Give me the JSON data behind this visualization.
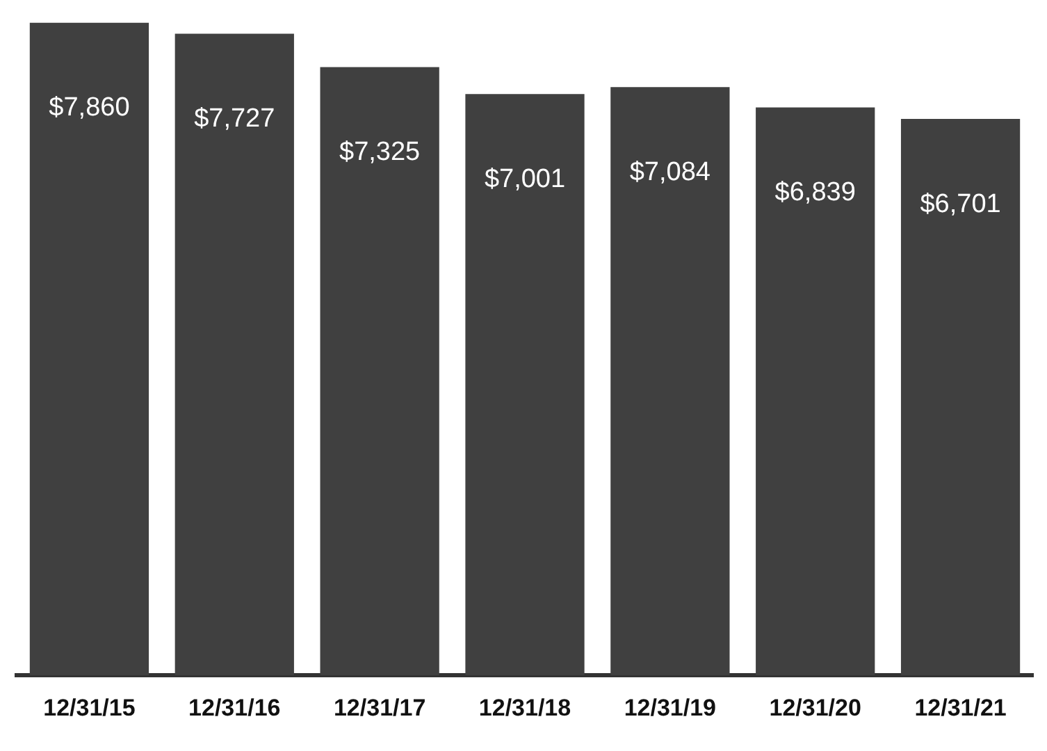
{
  "chart_data": {
    "type": "bar",
    "categories": [
      "12/31/15",
      "12/31/16",
      "12/31/17",
      "12/31/18",
      "12/31/19",
      "12/31/20",
      "12/31/21"
    ],
    "values": [
      7860,
      7727,
      7325,
      7001,
      7084,
      6839,
      6701
    ],
    "value_labels": [
      "$7,860",
      "$7,727",
      "$7,325",
      "$7,001",
      "$7,084",
      "$6,839",
      "$6,701"
    ],
    "color": "#404040",
    "grid": false,
    "legend": false,
    "tick_labels": "x"
  }
}
